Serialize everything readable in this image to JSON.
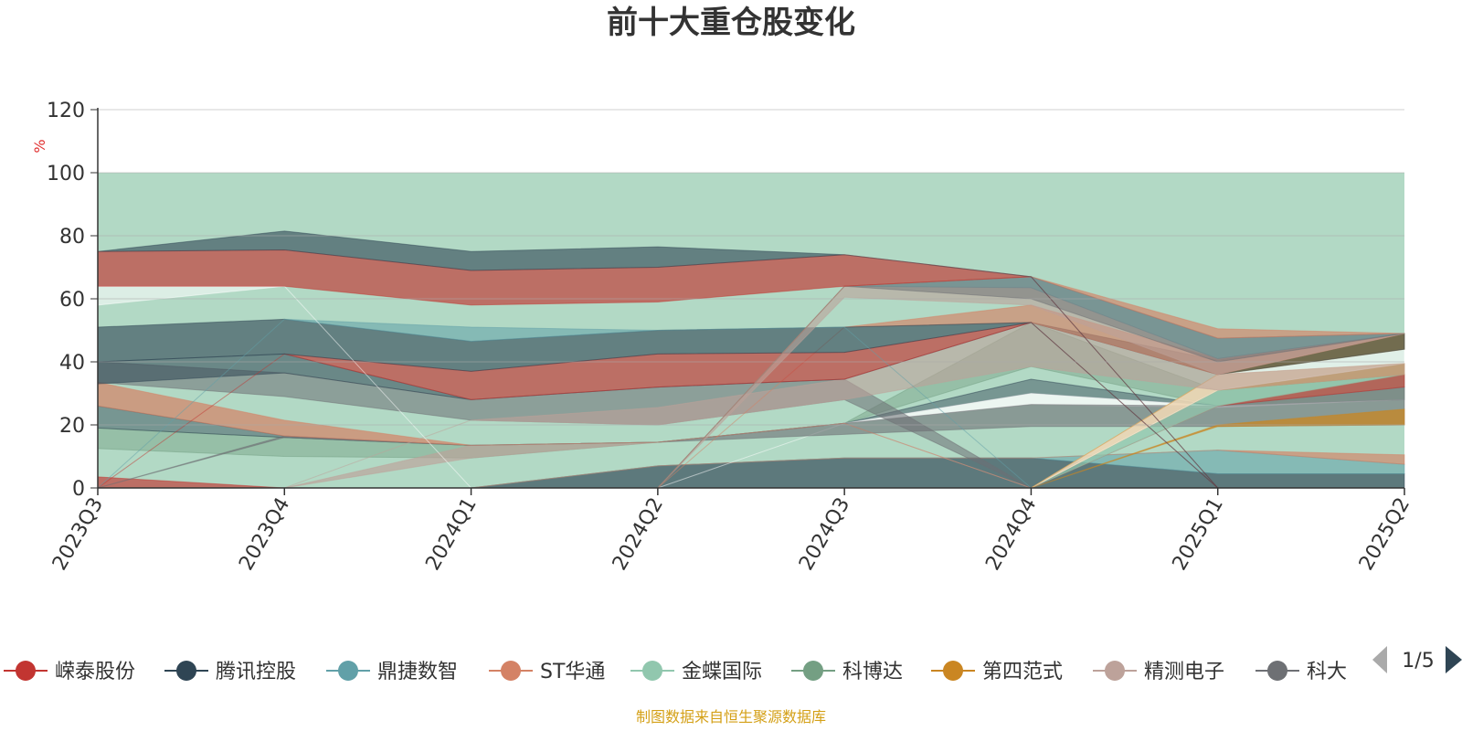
{
  "source_note": "制图数据来自恒生聚源数据库",
  "source_color": "#d4a017",
  "pager": {
    "text": "1/5",
    "prev_icon": "triangle-left-icon",
    "next_icon": "triangle-right-icon",
    "prev_color": "#aaaaaa",
    "next_color": "#2f4554"
  },
  "chart_data": {
    "type": "area",
    "title": "前十大重仓股变化",
    "ylabel": "%",
    "ylabel_color": "#e03030",
    "ylim": [
      0,
      120
    ],
    "yticks": [
      "0",
      "20",
      "40",
      "60",
      "80",
      "100",
      "120"
    ],
    "grid": true,
    "legend_position": "bottom",
    "background_band": {
      "from": 0,
      "to": 100,
      "color": "#b2d9c5"
    },
    "categories": [
      "2023Q3",
      "2023Q4",
      "2024Q1",
      "2024Q2",
      "2024Q3",
      "2024Q4",
      "2025Q1",
      "2025Q2"
    ],
    "legend": [
      {
        "name": "嵘泰股份",
        "color": "#c23531"
      },
      {
        "name": "腾讯控股",
        "color": "#2f4554"
      },
      {
        "name": "鼎捷数智",
        "color": "#61a0a8"
      },
      {
        "name": "ST华通",
        "color": "#d48265"
      },
      {
        "name": "金蝶国际",
        "color": "#91c7ae"
      },
      {
        "name": "科博达",
        "color": "#749f83"
      },
      {
        "name": "第四范式",
        "color": "#ca8622"
      },
      {
        "name": "精测电子",
        "color": "#bda29a"
      },
      {
        "name": "科大",
        "color": "#6e7074"
      }
    ],
    "bands": [
      {
        "color": "#c23531",
        "opacity": 0.65,
        "upper": [
          3.5,
          0,
          0,
          0,
          0,
          0,
          0,
          0
        ],
        "lower": [
          0,
          0,
          0,
          0,
          0,
          0,
          0,
          0
        ]
      },
      {
        "color": "#2f4554",
        "opacity": 0.65,
        "upper": [
          0,
          0,
          0,
          7,
          9.5,
          9.5,
          4.5,
          4.5
        ],
        "lower": [
          0,
          0,
          0,
          0,
          0,
          0,
          0,
          0
        ]
      },
      {
        "color": "#61a0a8",
        "opacity": 0.55,
        "upper": [
          0,
          0,
          0,
          7,
          9.5,
          9.5,
          12,
          7.5
        ],
        "lower": [
          0,
          0,
          0,
          7,
          9.5,
          9.5,
          4.5,
          4.5
        ]
      },
      {
        "color": "#d48265",
        "opacity": 0.65,
        "upper": [
          0,
          0,
          0,
          7,
          9.5,
          9.5,
          12,
          10.5
        ],
        "lower": [
          0,
          0,
          0,
          7,
          9.5,
          9.5,
          12,
          7.5
        ]
      },
      {
        "color": "#749f83",
        "opacity": 0.45,
        "upper": [
          19,
          16,
          13.5,
          14.5,
          20.5,
          52.5,
          31,
          36
        ],
        "lower": [
          12.5,
          10,
          9.5,
          14.5,
          20.5,
          38.5,
          26,
          28
        ]
      },
      {
        "color": "#2f4554",
        "opacity": 0.45,
        "upper": [
          26,
          16.5,
          13.5,
          14.5,
          20.5,
          34.5,
          26,
          28
        ],
        "lower": [
          19,
          16,
          13.5,
          14.5,
          20.5,
          30,
          26,
          28
        ]
      },
      {
        "color": "#ffffff",
        "opacity": 0.75,
        "upper": [
          0,
          0,
          0,
          0,
          20.5,
          30,
          26,
          28
        ],
        "lower": [
          0,
          0,
          0,
          0,
          20.5,
          26.5,
          25.5,
          28
        ]
      },
      {
        "color": "#bda29a",
        "opacity": 0.65,
        "upper": [
          0,
          0,
          13.5,
          14.5,
          20.5,
          0,
          0,
          0
        ],
        "lower": [
          0,
          0,
          9.5,
          14.5,
          20.5,
          0,
          0,
          0
        ]
      },
      {
        "color": "#6e7074",
        "opacity": 0.6,
        "upper": [
          0,
          16.5,
          13.5,
          14.5,
          20.5,
          26.5,
          26,
          32
        ],
        "lower": [
          0,
          16,
          13.5,
          14.5,
          17,
          19.5,
          19.5,
          20
        ]
      },
      {
        "color": "#ca8622",
        "opacity": 0.75,
        "upper": [
          0,
          0,
          0,
          0,
          0,
          0,
          20,
          25
        ],
        "lower": [
          0,
          0,
          0,
          0,
          0,
          0,
          19.5,
          20
        ]
      },
      {
        "color": "#c23531",
        "opacity": 0.65,
        "upper": [
          0,
          0,
          0,
          0,
          0,
          0,
          26,
          36
        ],
        "lower": [
          0,
          0,
          0,
          0,
          0,
          0,
          26,
          32
        ]
      },
      {
        "color": "#91c7ae",
        "opacity": 0.7,
        "upper": [
          0,
          0,
          0,
          0,
          0,
          0,
          31,
          36
        ],
        "lower": [
          0,
          0,
          0,
          0,
          0,
          0,
          26,
          36
        ]
      },
      {
        "color": "#ca8622",
        "opacity": 0.75,
        "upper": [
          0,
          0,
          0,
          0,
          0,
          0,
          36,
          39.5
        ],
        "lower": [
          0,
          0,
          0,
          0,
          0,
          0,
          31,
          36
        ]
      },
      {
        "color": "#ffffff",
        "opacity": 0.6,
        "upper": [
          0,
          0,
          0,
          0,
          0,
          0,
          36,
          44
        ],
        "lower": [
          0,
          0,
          0,
          0,
          0,
          0,
          31,
          39.5
        ]
      },
      {
        "color": "#ca8622",
        "opacity": 0.75,
        "upper": [
          0,
          0,
          0,
          0,
          0,
          0,
          36,
          49
        ],
        "lower": [
          0,
          0,
          0,
          0,
          0,
          0,
          36,
          44
        ]
      },
      {
        "color": "#d48265",
        "opacity": 0.7,
        "upper": [
          33.5,
          21.5,
          13.5,
          14.5,
          20.5,
          0,
          0,
          0
        ],
        "lower": [
          26,
          16.5,
          13.5,
          14.5,
          20.5,
          0,
          0,
          0
        ]
      },
      {
        "color": "#6e7074",
        "opacity": 0.55,
        "upper": [
          40,
          36.5,
          28,
          32,
          34.5,
          0,
          0,
          0
        ],
        "lower": [
          33.5,
          29,
          21.5,
          20,
          28,
          0,
          0,
          0
        ]
      },
      {
        "color": "#bda29a",
        "opacity": 0.6,
        "upper": [
          0,
          0,
          21.5,
          25.5,
          34.5,
          52.5,
          36,
          39.5
        ],
        "lower": [
          0,
          0,
          21.5,
          20,
          28,
          38.5,
          31,
          36
        ]
      },
      {
        "color": "#2f4554",
        "opacity": 0.55,
        "upper": [
          40,
          42.5,
          28,
          32,
          34.5,
          52.5,
          40.5,
          49
        ],
        "lower": [
          33,
          36.5,
          28,
          32,
          34.5,
          52.5,
          36,
          44
        ]
      },
      {
        "color": "#d48265",
        "opacity": 0.65,
        "upper": [
          0,
          0,
          0,
          0,
          51,
          58,
          41,
          49
        ],
        "lower": [
          0,
          0,
          0,
          0,
          51,
          52.5,
          36,
          49
        ]
      },
      {
        "color": "#c23531",
        "opacity": 0.65,
        "upper": [
          0,
          42.5,
          37,
          42.5,
          43,
          52.5,
          0,
          0
        ],
        "lower": [
          0,
          42.5,
          28,
          32,
          34.5,
          52.5,
          0,
          0
        ]
      },
      {
        "color": "#2f4554",
        "opacity": 0.6,
        "upper": [
          51,
          53.5,
          46.5,
          50,
          51,
          52.5,
          0,
          0
        ],
        "lower": [
          40,
          42.5,
          37,
          42.5,
          43,
          52.5,
          0,
          0
        ]
      },
      {
        "color": "#61a0a8",
        "opacity": 0.55,
        "upper": [
          0,
          53.5,
          51,
          50,
          51,
          0,
          0,
          0
        ],
        "lower": [
          0,
          53.5,
          46.5,
          50,
          51,
          0,
          0,
          0
        ]
      },
      {
        "color": "#bda29a",
        "opacity": 0.6,
        "upper": [
          0,
          0,
          0,
          0,
          64,
          63.5,
          41,
          49
        ],
        "lower": [
          0,
          0,
          0,
          0,
          60.5,
          58,
          36,
          49
        ]
      },
      {
        "color": "#61a0a8",
        "opacity": 0.55,
        "upper": [
          0,
          0,
          0,
          0,
          64,
          67,
          47.5,
          49
        ],
        "lower": [
          0,
          0,
          0,
          0,
          64,
          63.5,
          41,
          49
        ]
      },
      {
        "color": "#6e7074",
        "opacity": 0.5,
        "upper": [
          0,
          0,
          0,
          0,
          64,
          67,
          47.5,
          49
        ],
        "lower": [
          0,
          0,
          0,
          0,
          64,
          60,
          40,
          49
        ]
      },
      {
        "color": "#d48265",
        "opacity": 0.65,
        "upper": [
          0,
          0,
          0,
          0,
          64,
          67,
          50.5,
          49
        ],
        "lower": [
          0,
          0,
          0,
          0,
          64,
          67,
          47.5,
          49
        ]
      },
      {
        "color": "#ffffff",
        "opacity": 0.55,
        "upper": [
          64,
          64,
          0,
          0,
          0,
          0,
          0,
          0
        ],
        "lower": [
          58,
          64,
          0,
          0,
          0,
          0,
          0,
          0
        ]
      },
      {
        "color": "#c23531",
        "opacity": 0.65,
        "upper": [
          75,
          75.5,
          69,
          70,
          74,
          67,
          0,
          0
        ],
        "lower": [
          64,
          64,
          58,
          59,
          64,
          67,
          0,
          0
        ]
      },
      {
        "color": "#2f4554",
        "opacity": 0.6,
        "upper": [
          75,
          81.5,
          75,
          76.5,
          74,
          67,
          0,
          0
        ],
        "lower": [
          75,
          75.5,
          69,
          70,
          74,
          67,
          0,
          0
        ]
      }
    ]
  }
}
